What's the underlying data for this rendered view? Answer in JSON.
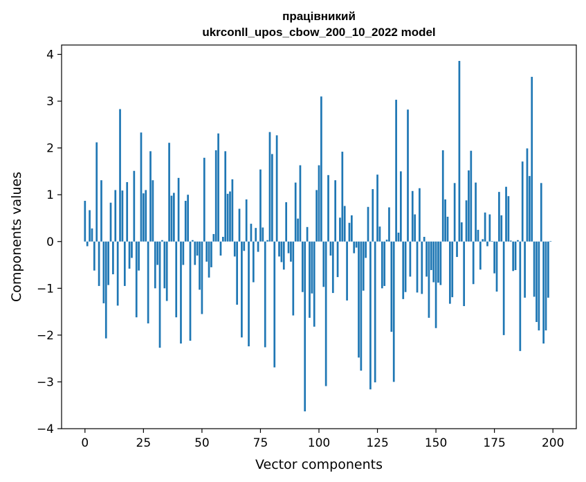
{
  "chart_data": {
    "type": "bar",
    "title": "працівникий",
    "subtitle": "ukrconll_upos_cbow_200_10_2022 model",
    "xlabel": "Vector components",
    "ylabel": "Components values",
    "xlim": [
      -10,
      210
    ],
    "ylim": [
      -4,
      4.2
    ],
    "xticks": [
      0,
      25,
      50,
      75,
      100,
      125,
      150,
      175,
      200
    ],
    "yticks": [
      -4,
      -3,
      -2,
      -1,
      0,
      1,
      2,
      3,
      4
    ],
    "xtick_labels": [
      "0",
      "25",
      "50",
      "75",
      "100",
      "125",
      "150",
      "175",
      "200"
    ],
    "ytick_labels": [
      "−4",
      "−3",
      "−2",
      "−1",
      "0",
      "1",
      "2",
      "3",
      "4"
    ],
    "grid": false,
    "legend": "none",
    "bar_color": "#1f77b4",
    "x": [
      0,
      1,
      2,
      3,
      4,
      5,
      6,
      7,
      8,
      9,
      10,
      11,
      12,
      13,
      14,
      15,
      16,
      17,
      18,
      19,
      20,
      21,
      22,
      23,
      24,
      25,
      26,
      27,
      28,
      29,
      30,
      31,
      32,
      33,
      34,
      35,
      36,
      37,
      38,
      39,
      40,
      41,
      42,
      43,
      44,
      45,
      46,
      47,
      48,
      49,
      50,
      51,
      52,
      53,
      54,
      55,
      56,
      57,
      58,
      59,
      60,
      61,
      62,
      63,
      64,
      65,
      66,
      67,
      68,
      69,
      70,
      71,
      72,
      73,
      74,
      75,
      76,
      77,
      78,
      79,
      80,
      81,
      82,
      83,
      84,
      85,
      86,
      87,
      88,
      89,
      90,
      91,
      92,
      93,
      94,
      95,
      96,
      97,
      98,
      99,
      100,
      101,
      102,
      103,
      104,
      105,
      106,
      107,
      108,
      109,
      110,
      111,
      112,
      113,
      114,
      115,
      116,
      117,
      118,
      119,
      120,
      121,
      122,
      123,
      124,
      125,
      126,
      127,
      128,
      129,
      130,
      131,
      132,
      133,
      134,
      135,
      136,
      137,
      138,
      139,
      140,
      141,
      142,
      143,
      144,
      145,
      146,
      147,
      148,
      149,
      150,
      151,
      152,
      153,
      154,
      155,
      156,
      157,
      158,
      159,
      160,
      161,
      162,
      163,
      164,
      165,
      166,
      167,
      168,
      169,
      170,
      171,
      172,
      173,
      174,
      175,
      176,
      177,
      178,
      179,
      180,
      181,
      182,
      183,
      184,
      185,
      186,
      187,
      188,
      189,
      190,
      191,
      192,
      193,
      194,
      195,
      196,
      197,
      198,
      199
    ],
    "values": [
      0.87,
      -0.1,
      0.67,
      0.28,
      -0.62,
      2.12,
      -0.95,
      1.31,
      -1.32,
      -2.07,
      -0.93,
      0.83,
      -0.7,
      1.1,
      -1.37,
      2.83,
      1.09,
      -0.95,
      1.27,
      -0.58,
      -0.35,
      1.51,
      -1.62,
      -0.62,
      2.33,
      1.03,
      1.1,
      -1.75,
      1.93,
      1.31,
      -1.0,
      -0.5,
      -2.27,
      0.03,
      -1.0,
      -1.27,
      2.11,
      0.98,
      1.04,
      -1.62,
      1.36,
      -2.18,
      -0.5,
      0.87,
      1.0,
      -2.12,
      0.03,
      -0.5,
      -0.3,
      -1.03,
      -1.55,
      1.79,
      -0.43,
      -0.77,
      -0.55,
      0.16,
      1.95,
      2.31,
      -0.3,
      0.1,
      1.93,
      1.02,
      1.07,
      1.33,
      -0.32,
      -1.35,
      0.7,
      -2.05,
      -0.2,
      0.9,
      -2.24,
      0.38,
      -0.87,
      0.29,
      -0.22,
      1.54,
      0.3,
      -2.26,
      0.03,
      2.34,
      1.87,
      -2.69,
      2.27,
      -0.32,
      -0.44,
      -0.6,
      0.84,
      -0.25,
      -0.43,
      -1.58,
      1.26,
      0.49,
      1.63,
      -1.08,
      -3.63,
      0.31,
      -1.63,
      -1.11,
      -1.82,
      1.1,
      1.63,
      3.1,
      -0.97,
      -3.09,
      1.42,
      -0.3,
      -1.1,
      1.31,
      -0.76,
      0.51,
      1.92,
      0.76,
      -1.26,
      0.4,
      0.56,
      -0.25,
      -0.13,
      -2.48,
      -2.76,
      -1.05,
      -0.35,
      0.74,
      -3.16,
      1.12,
      -3.01,
      1.43,
      0.32,
      -1.0,
      -0.95,
      0.04,
      0.73,
      -1.93,
      -3.0,
      3.03,
      0.19,
      1.5,
      -1.23,
      -1.08,
      2.82,
      -0.75,
      1.08,
      0.58,
      -1.09,
      1.14,
      -1.12,
      0.1,
      -0.75,
      -1.63,
      -0.61,
      -0.87,
      -1.85,
      -0.88,
      -0.93,
      1.95,
      0.9,
      0.53,
      -1.33,
      -1.19,
      1.25,
      -0.33,
      3.86,
      0.41,
      -1.38,
      0.88,
      1.52,
      1.94,
      -0.91,
      1.26,
      0.25,
      -0.6,
      0.05,
      0.62,
      -0.1,
      0.58,
      0.01,
      -0.68,
      -1.07,
      1.06,
      0.56,
      -2.0,
      1.17,
      0.97,
      0.02,
      -0.63,
      -0.61,
      0.03,
      -2.34,
      1.71,
      -1.2,
      1.99,
      1.4,
      3.52,
      -1.18,
      -1.72,
      -1.9,
      1.25,
      -2.18,
      -1.9,
      -1.2,
      0.01
    ]
  }
}
